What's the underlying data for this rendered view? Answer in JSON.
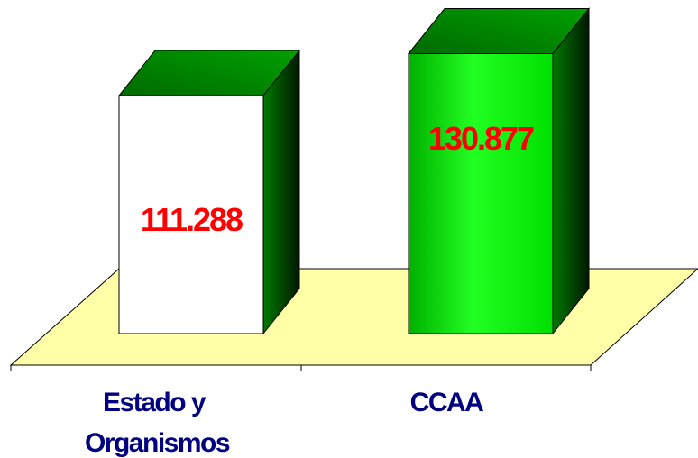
{
  "chart_data": {
    "type": "bar",
    "categories": [
      [
        "Estado y",
        "Organismos"
      ],
      [
        "CCAA"
      ]
    ],
    "values": [
      111288,
      130877
    ],
    "value_labels": [
      "111.288",
      "130.877"
    ],
    "title": "",
    "xlabel": "",
    "ylabel": "",
    "grid": false,
    "legend": "none",
    "colors": {
      "floor": "#FFFFA8",
      "bar2_front": "#00FF00",
      "bar_top": "#008000",
      "bar_side": "#004400",
      "bar1_front": "#FFFFFF",
      "value_label": "#FF0000",
      "category_label": "#000080",
      "axis": "#000000"
    }
  }
}
